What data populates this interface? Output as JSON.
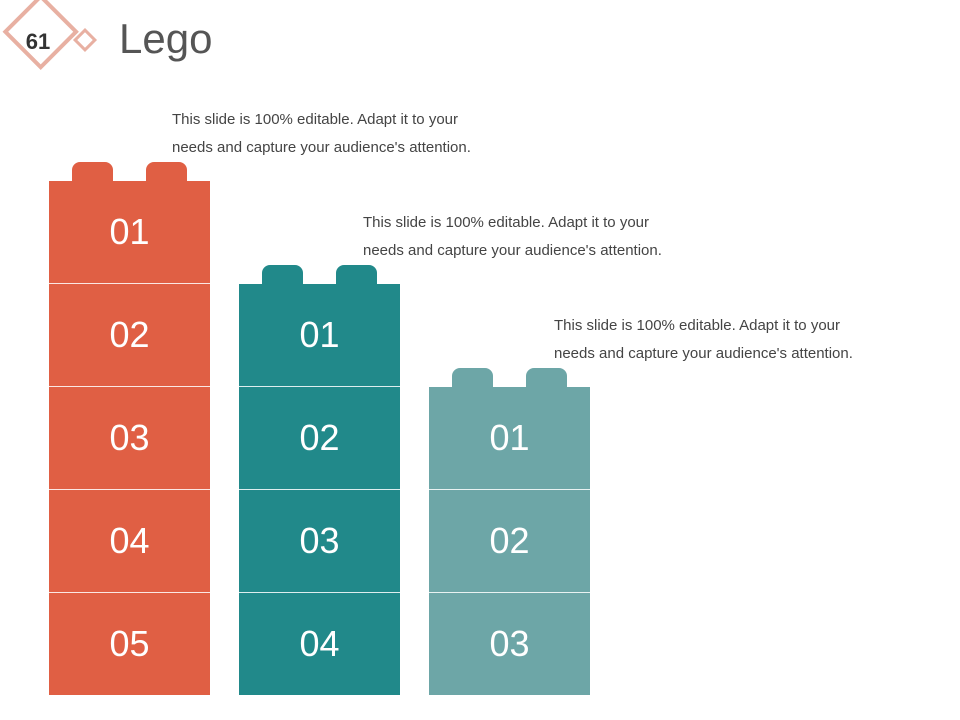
{
  "slide": {
    "number": "61",
    "title": "Lego"
  },
  "colors": {
    "brick_1": "#e05f44",
    "brick_2": "#21898a",
    "brick_3": "#6da6a7",
    "badge_outline": "#e8b0a2",
    "title_text": "#555555",
    "body_text": "#444444"
  },
  "bricks": [
    {
      "description": "This slide is 100% editable. Adapt it to your needs and capture your audience's attention.",
      "segments": [
        "01",
        "02",
        "03",
        "04",
        "05"
      ]
    },
    {
      "description": "This slide is 100% editable. Adapt it to your needs and capture your audience's attention.",
      "segments": [
        "01",
        "02",
        "03",
        "04"
      ]
    },
    {
      "description": "This slide is 100% editable. Adapt it to your needs and capture your audience's attention.",
      "segments": [
        "01",
        "02",
        "03"
      ]
    }
  ]
}
